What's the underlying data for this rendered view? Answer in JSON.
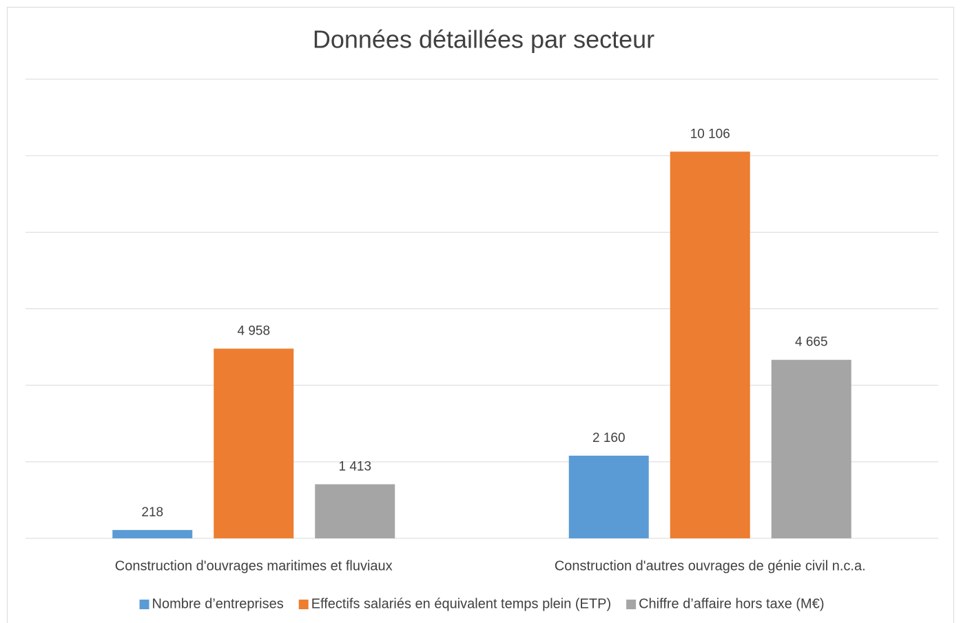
{
  "chart_data": {
    "type": "bar",
    "title": "Données détaillées par secteur",
    "categories": [
      "Construction d'ouvrages maritimes et fluviaux",
      "Construction d'autres ouvrages de génie civil n.c.a."
    ],
    "series": [
      {
        "name": "Nombre d’entreprises",
        "color": "#5b9bd5",
        "values": [
          218,
          2160
        ],
        "value_labels": [
          "218",
          "2 160"
        ]
      },
      {
        "name": "Effectifs salariés en équivalent temps plein (ETP)",
        "color": "#ed7d31",
        "values": [
          4958,
          10106
        ],
        "value_labels": [
          "4 958",
          "10 106"
        ]
      },
      {
        "name": "Chiffre d’affaire hors taxe (M€)",
        "color": "#a5a5a5",
        "values": [
          1413,
          4665
        ],
        "value_labels": [
          "1 413",
          "4 665"
        ]
      }
    ],
    "ylim": [
      0,
      12000
    ],
    "yticks": [
      0,
      2000,
      4000,
      6000,
      8000,
      10000,
      12000
    ],
    "grid": true,
    "legend": "bottom"
  }
}
